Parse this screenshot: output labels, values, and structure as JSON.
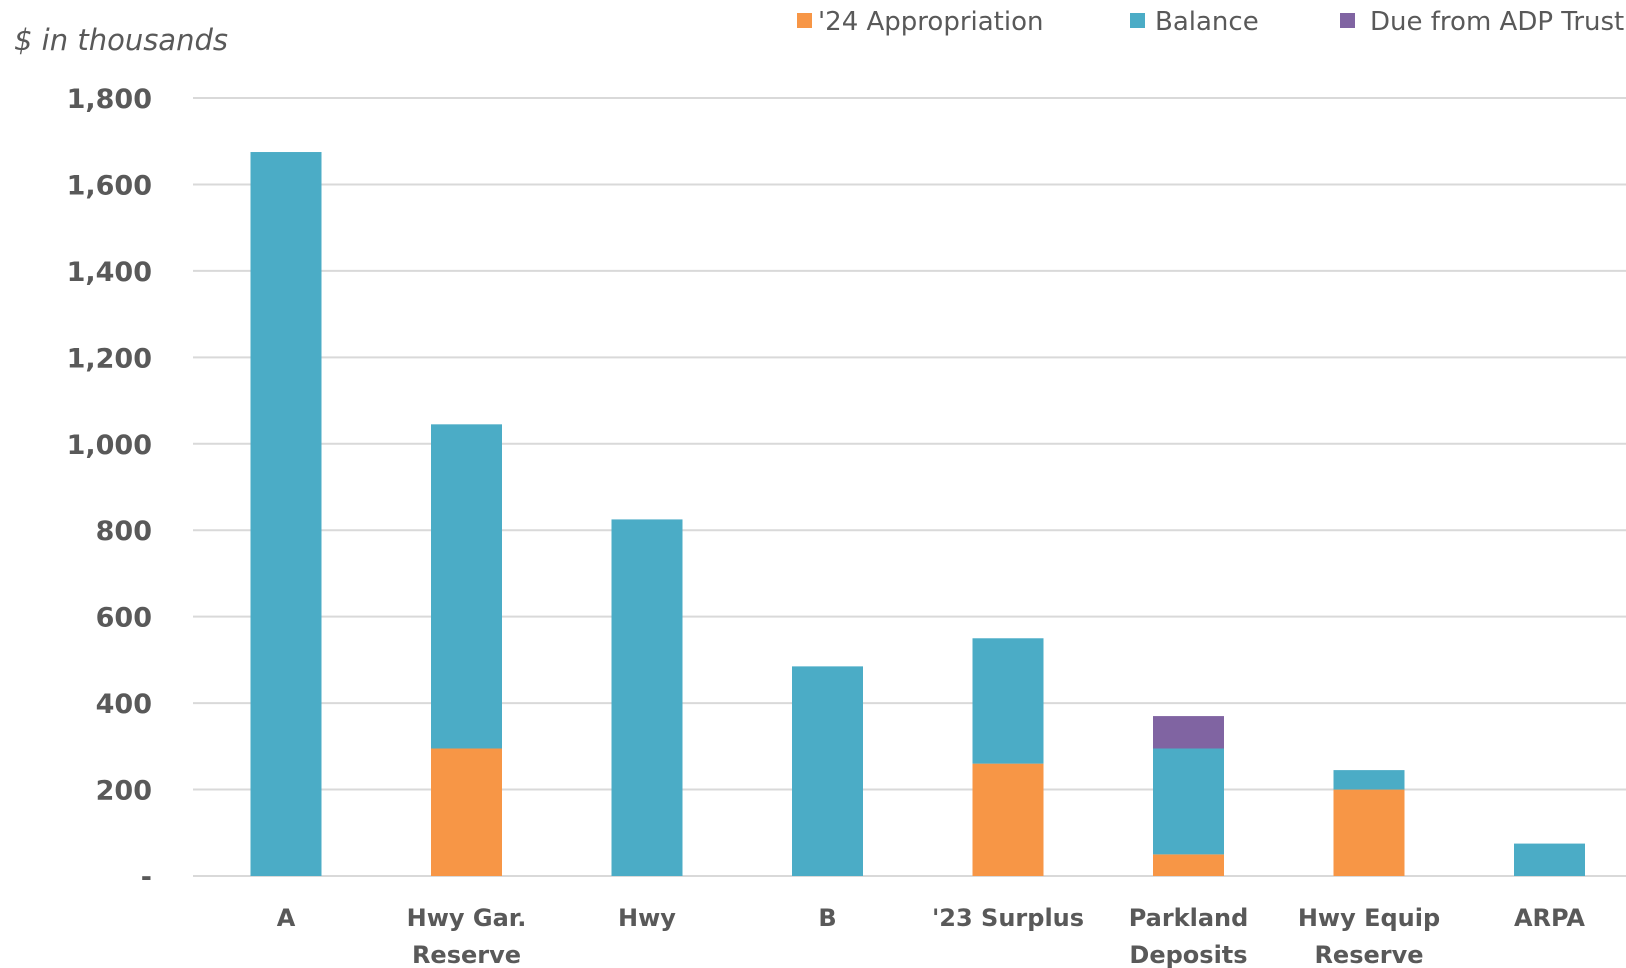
{
  "chart_data": {
    "type": "bar",
    "stacked": true,
    "unit_label": "$ in thousands",
    "title": "",
    "xlabel": "",
    "ylabel": "",
    "ylim": [
      0,
      1800
    ],
    "yticks": [
      {
        "value": 0,
        "label": "-"
      },
      {
        "value": 200,
        "label": "200"
      },
      {
        "value": 400,
        "label": "400"
      },
      {
        "value": 600,
        "label": "600"
      },
      {
        "value": 800,
        "label": "800"
      },
      {
        "value": 1000,
        "label": "1,000"
      },
      {
        "value": 1200,
        "label": "1,200"
      },
      {
        "value": 1400,
        "label": "1,400"
      },
      {
        "value": 1600,
        "label": "1,600"
      },
      {
        "value": 1800,
        "label": "1,800"
      }
    ],
    "grid": true,
    "legend_position": "top-right",
    "categories": [
      [
        "A"
      ],
      [
        "Hwy Gar.",
        "Reserve"
      ],
      [
        "Hwy"
      ],
      [
        "B"
      ],
      [
        "'23 Surplus"
      ],
      [
        "Parkland",
        "Deposits"
      ],
      [
        "Hwy Equip",
        "Reserve"
      ],
      [
        "ARPA"
      ]
    ],
    "series": [
      {
        "name": "'24 Appropriation",
        "color": "#f79646",
        "values": [
          0,
          295,
          0,
          0,
          260,
          50,
          200,
          0
        ]
      },
      {
        "name": "Balance",
        "color": "#4bacc6",
        "values": [
          1675,
          750,
          825,
          485,
          290,
          245,
          45,
          75
        ]
      },
      {
        "name": "Due from ADP Trust",
        "color": "#8064a2",
        "values": [
          0,
          0,
          0,
          0,
          0,
          75,
          0,
          0
        ]
      }
    ]
  }
}
